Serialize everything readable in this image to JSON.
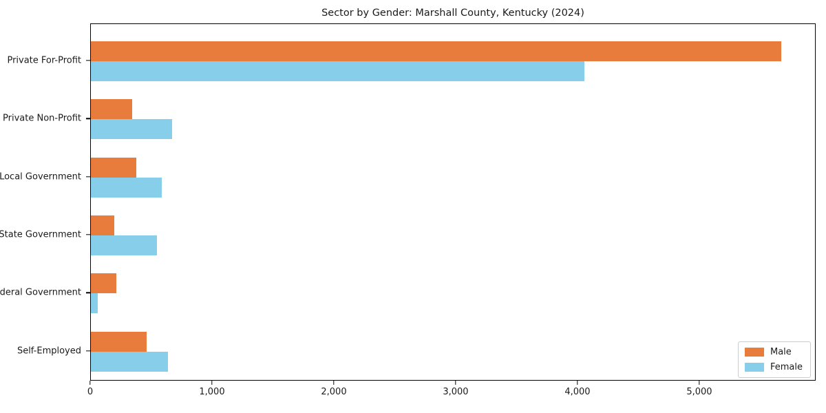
{
  "title": "Sector by Gender: Marshall County, Kentucky (2024)",
  "colors": {
    "male": "#e87c3c",
    "female": "#87ceeb",
    "spine": "#000000",
    "legend_border": "#cccccc",
    "background": "#ffffff"
  },
  "chart_data": {
    "type": "bar",
    "orientation": "horizontal",
    "title": "Sector by Gender: Marshall County, Kentucky (2024)",
    "xlabel": "",
    "ylabel": "",
    "categories": [
      "Private For-Profit",
      "Private Non-Profit",
      "Local Government",
      "State Government",
      "Federal Government",
      "Self-Employed"
    ],
    "series": [
      {
        "name": "Male",
        "color": "#e87c3c",
        "values": [
          5675,
          340,
          375,
          195,
          210,
          460
        ]
      },
      {
        "name": "Female",
        "color": "#87ceeb",
        "values": [
          4060,
          670,
          585,
          545,
          55,
          635
        ]
      }
    ],
    "xlim": [
      0,
      5955
    ],
    "x_ticks": [
      0,
      1000,
      2000,
      3000,
      4000,
      5000
    ],
    "x_tick_labels": [
      "0",
      "1,000",
      "2,000",
      "3,000",
      "4,000",
      "5,000"
    ],
    "grid": false,
    "legend_position": "lower right",
    "legend_entries": [
      "Male",
      "Female"
    ]
  }
}
